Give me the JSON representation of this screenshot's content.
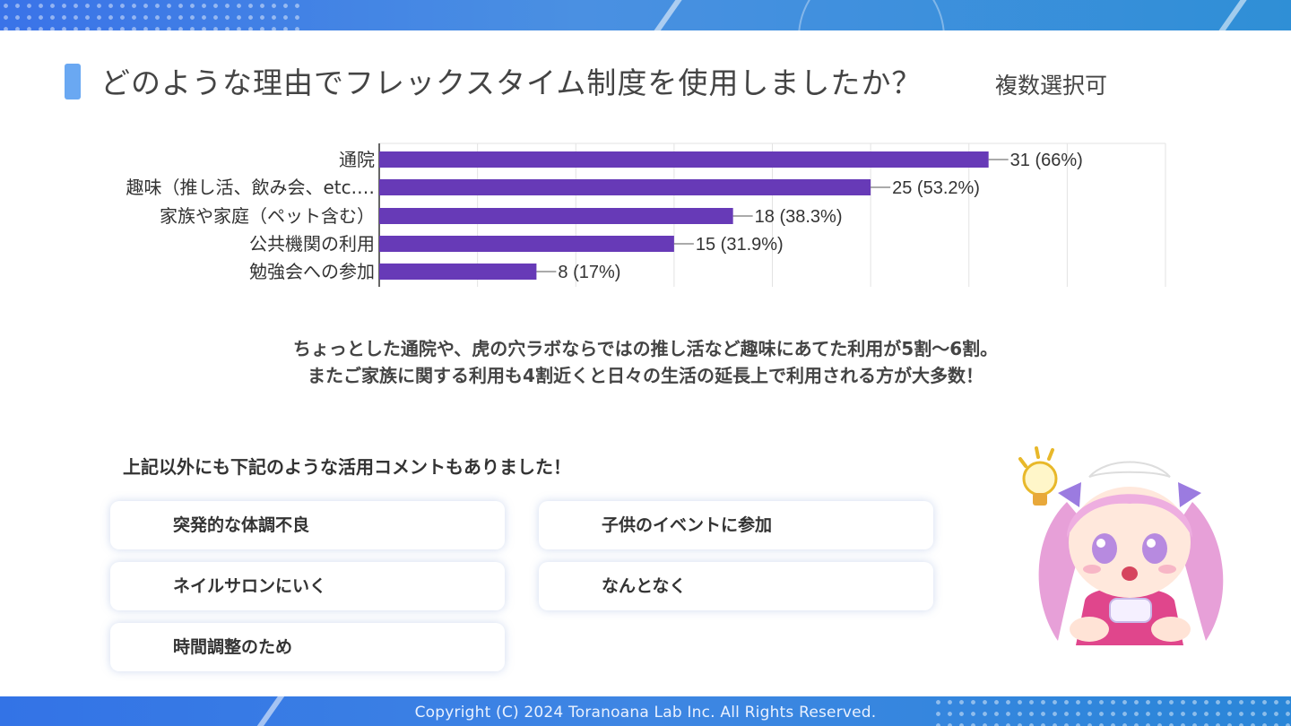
{
  "page": {
    "title": "どのような理由でフレックスタイム制度を使用しましたか？",
    "title_note": "複数選択可",
    "summary_lines": [
      "ちょっとした通院や、虎の穴ラボならではの推し活など趣味にあてた利用が5割～6割。",
      "またご家族に関する利用も4割近くと日々の生活の延長上で利用される方が大多数！"
    ],
    "comments_heading": "上記以外にも下記のような活用コメントもありました！",
    "comments": [
      "突発的な体調不良",
      "子供のイベントに参加",
      "ネイルサロンにいく",
      "なんとなく",
      "時間調整のため"
    ],
    "copyright": "Copyright  (C) 2024 Toranoana Lab Inc. All Rights Reserved."
  },
  "colors": {
    "bar": "#673ab7",
    "accent": "#6aa8f2",
    "band": "#3a7fe4"
  },
  "mascot": {
    "icon": "lightbulb-icon"
  },
  "chart_data": {
    "type": "bar",
    "orientation": "horizontal",
    "categories": [
      "通院",
      "趣味（推し活、飲み会、etc.…",
      "家族や家庭（ペット含む）",
      "公共機関の利用",
      "勉強会への参加"
    ],
    "values": [
      31,
      25,
      18,
      15,
      8
    ],
    "data_labels": [
      "31 (66%)",
      "25 (53.2%)",
      "18 (38.3%)",
      "15 (31.9%)",
      "8 (17%)"
    ],
    "xlim": [
      0,
      40
    ],
    "grid": true
  }
}
